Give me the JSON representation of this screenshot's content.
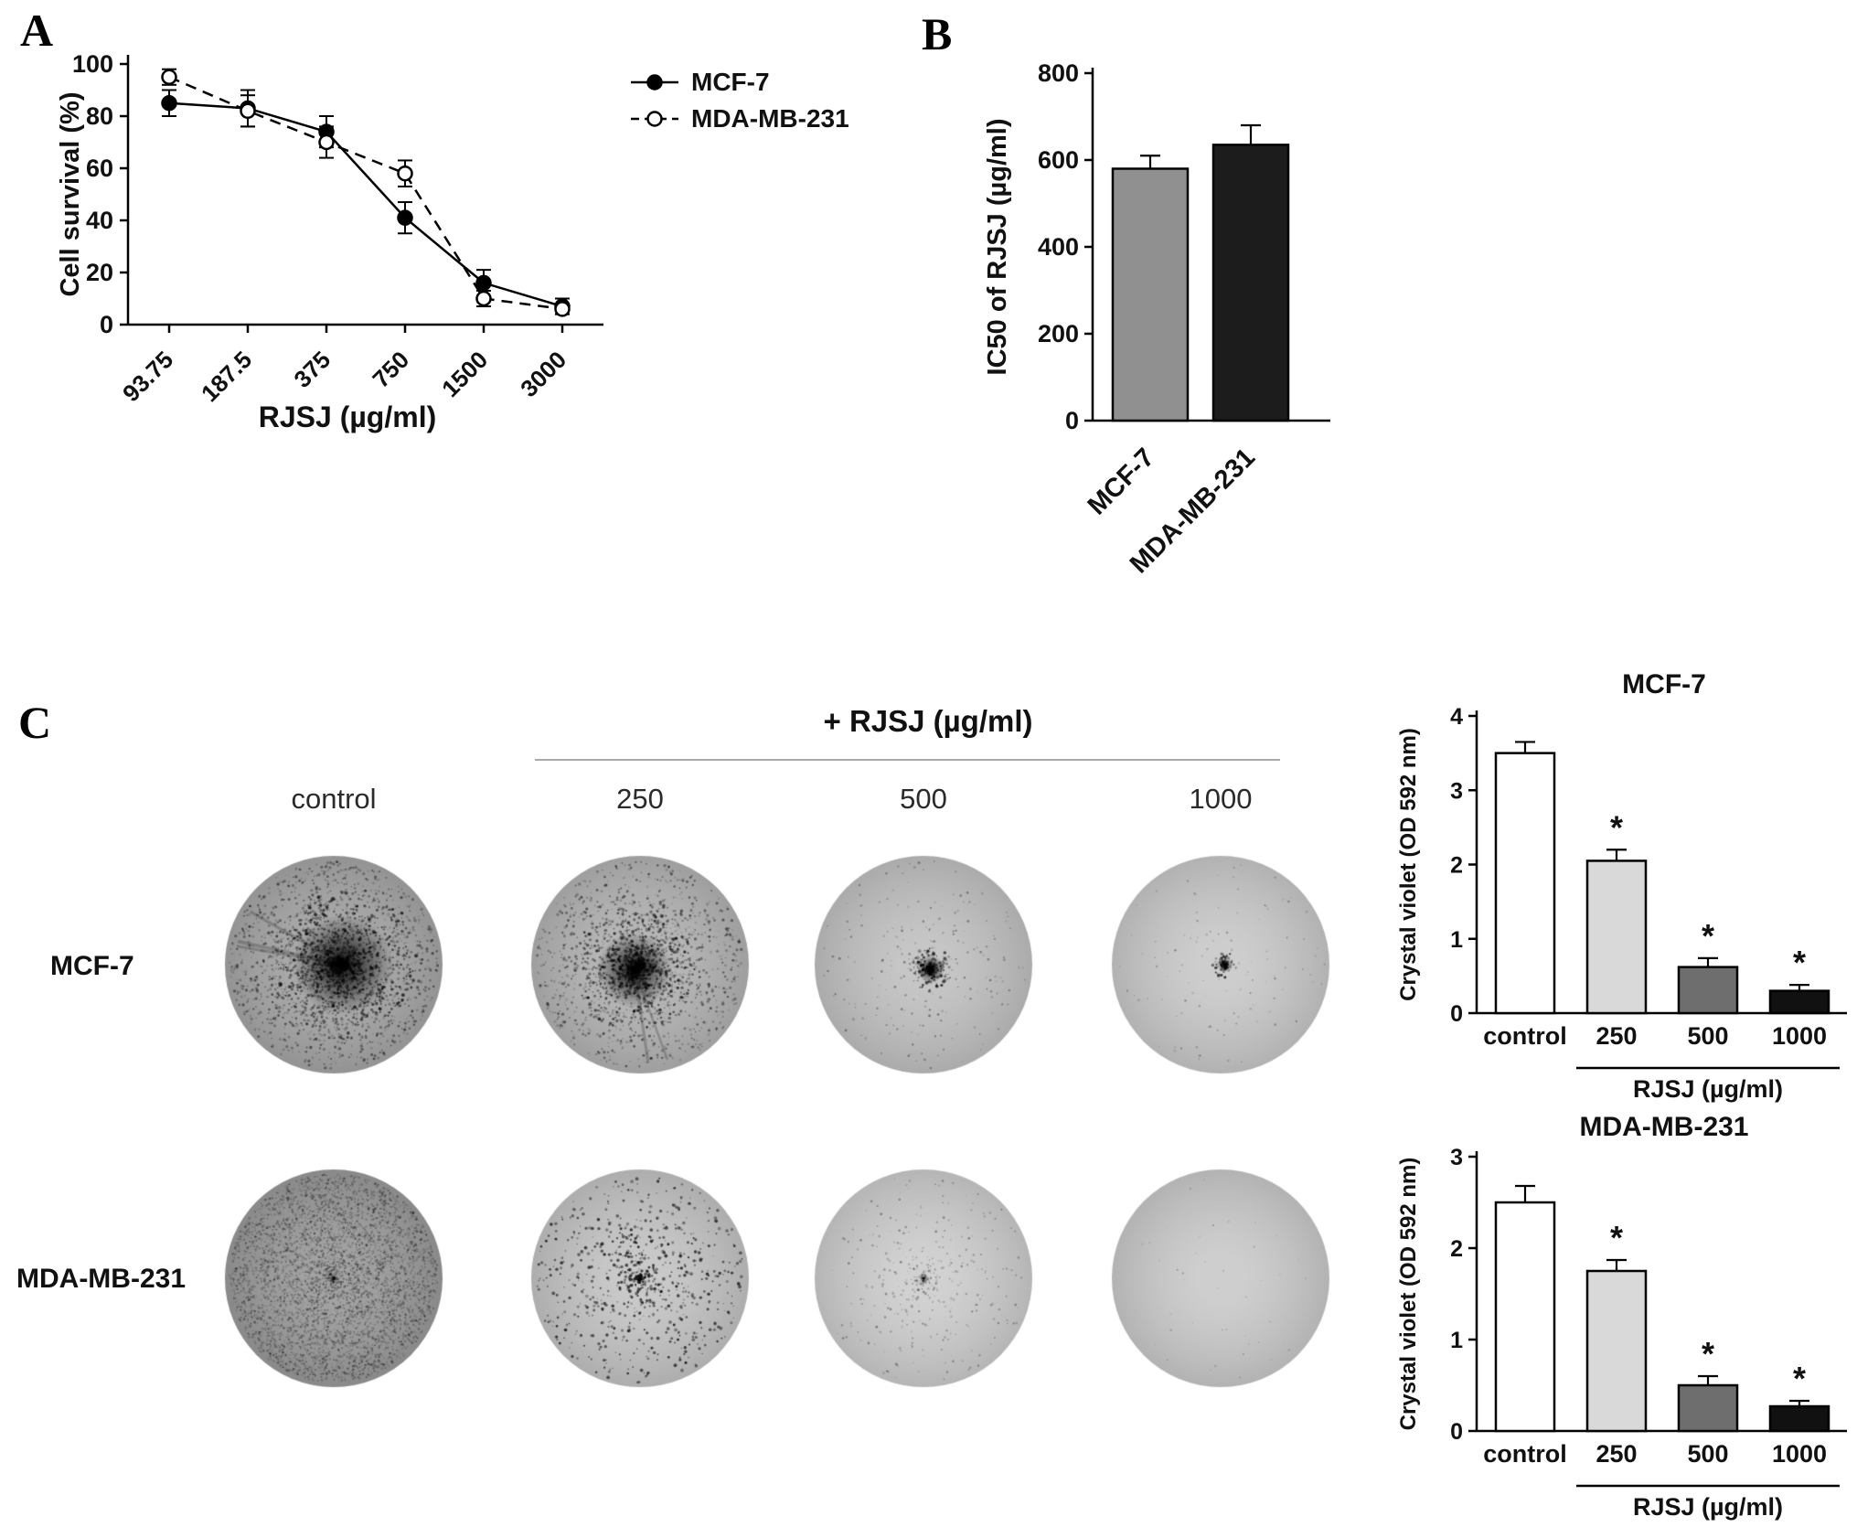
{
  "panels": {
    "a": "A",
    "b": "B",
    "c": "C"
  },
  "chart_data": [
    {
      "id": "survival",
      "type": "line",
      "title": "",
      "xlabel": "RJSJ (µg/ml)",
      "ylabel": "Cell survival (%)",
      "categories": [
        "93.75",
        "187.5",
        "375",
        "750",
        "1500",
        "3000"
      ],
      "ylim": [
        0,
        100
      ],
      "yticks": [
        0,
        20,
        40,
        60,
        80,
        100
      ],
      "legend_position": "top-right",
      "series": [
        {
          "name": "MCF-7",
          "style": "solid",
          "marker": "filled",
          "values": [
            85,
            83,
            74,
            41,
            16,
            7
          ],
          "errors": [
            5,
            7,
            6,
            6,
            5,
            3
          ]
        },
        {
          "name": "MDA-MB-231",
          "style": "dashed",
          "marker": "open",
          "values": [
            95,
            82,
            70,
            58,
            10,
            6
          ],
          "errors": [
            3,
            6,
            6,
            5,
            3,
            2
          ]
        }
      ]
    },
    {
      "id": "ic50",
      "type": "bar",
      "title": "",
      "ylabel": "IC50 of RJSJ (µg/ml)",
      "categories": [
        "MCF-7",
        "MDA-MB-231"
      ],
      "values": [
        580,
        635
      ],
      "errors": [
        30,
        45
      ],
      "stars": [
        false,
        false
      ],
      "colors": [
        "#909090",
        "#1c1c1c"
      ],
      "ylim": [
        0,
        800
      ],
      "yticks": [
        0,
        200,
        400,
        600,
        800
      ]
    },
    {
      "id": "cv_mcf7",
      "type": "bar",
      "title": "MCF-7",
      "ylabel": "Crystal violet (OD 592 nm)",
      "xlabel_group": "RJSJ (µg/ml)",
      "categories": [
        "control",
        "250",
        "500",
        "1000"
      ],
      "values": [
        3.5,
        2.05,
        0.62,
        0.3
      ],
      "errors": [
        0.15,
        0.15,
        0.12,
        0.08
      ],
      "stars": [
        false,
        true,
        true,
        true
      ],
      "colors": [
        "#ffffff",
        "#d9d9d9",
        "#6e6e6e",
        "#111111"
      ],
      "ylim": [
        0,
        4
      ],
      "yticks": [
        0,
        1,
        2,
        3,
        4
      ]
    },
    {
      "id": "cv_mda",
      "type": "bar",
      "title": "MDA-MB-231",
      "ylabel": "Crystal violet (OD 592 nm)",
      "xlabel_group": "RJSJ (µg/ml)",
      "categories": [
        "control",
        "250",
        "500",
        "1000"
      ],
      "values": [
        2.5,
        1.75,
        0.5,
        0.27
      ],
      "errors": [
        0.18,
        0.12,
        0.1,
        0.06
      ],
      "stars": [
        false,
        true,
        true,
        true
      ],
      "colors": [
        "#ffffff",
        "#d9d9d9",
        "#6e6e6e",
        "#111111"
      ],
      "ylim": [
        0,
        3
      ],
      "yticks": [
        0,
        1,
        2,
        3
      ]
    }
  ],
  "colony": {
    "header": "+ RJSJ (µg/ml)",
    "columns": [
      "control",
      "250",
      "500",
      "1000"
    ],
    "rows": [
      {
        "label": "MCF-7",
        "dishes": [
          {
            "base": "#a7a7a7",
            "dots": 2400,
            "dotSize": 1.1,
            "alphaMin": 0.12,
            "alphaVar": 0.45,
            "centerBias": 0.45,
            "blobR": 55,
            "blobA": 0.9,
            "blobDots": 800,
            "blobDx": 10,
            "blobDy": 0,
            "streaks": 3,
            "seed": 11
          },
          {
            "base": "#b4b4b4",
            "dots": 1900,
            "dotSize": 1.1,
            "alphaMin": 0.12,
            "alphaVar": 0.45,
            "centerBias": 0.5,
            "blobR": 42,
            "blobA": 0.85,
            "blobDots": 650,
            "blobDx": -6,
            "blobDy": 6,
            "streaks": 2,
            "seed": 22
          },
          {
            "base": "#c2c2c2",
            "dots": 260,
            "dotSize": 0.8,
            "alphaMin": 0.1,
            "alphaVar": 0.35,
            "centerBias": 0.35,
            "blobR": 15,
            "blobA": 0.95,
            "blobDots": 260,
            "blobDx": 8,
            "blobDy": 5,
            "streaks": 0,
            "seed": 33
          },
          {
            "base": "#cacaca",
            "dots": 130,
            "dotSize": 0.7,
            "alphaMin": 0.08,
            "alphaVar": 0.3,
            "centerBias": 0.3,
            "blobR": 9,
            "blobA": 0.6,
            "blobDots": 90,
            "blobDx": 5,
            "blobDy": 0,
            "streaks": 0,
            "seed": 44
          }
        ]
      },
      {
        "label": "MDA-MB-231",
        "dishes": [
          {
            "base": "#9c9c9c",
            "dots": 5200,
            "dotSize": 0.75,
            "alphaMin": 0.08,
            "alphaVar": 0.3,
            "centerBias": 0.1,
            "blobR": 0,
            "blobA": 0,
            "blobDots": 0,
            "blobDx": 0,
            "blobDy": 0,
            "streaks": 0,
            "seed": 55
          },
          {
            "base": "#c5c5c5",
            "dots": 850,
            "dotSize": 1.3,
            "alphaMin": 0.3,
            "alphaVar": 0.5,
            "centerBias": 0.4,
            "blobR": 0,
            "blobA": 0,
            "blobDots": 0,
            "blobDx": 0,
            "blobDy": 0,
            "streaks": 0,
            "seed": 66
          },
          {
            "base": "#cecece",
            "dots": 420,
            "dotSize": 0.8,
            "alphaMin": 0.1,
            "alphaVar": 0.3,
            "centerBias": 0.55,
            "blobR": 0,
            "blobA": 0,
            "blobDots": 0,
            "blobDx": 0,
            "blobDy": 0,
            "streaks": 0,
            "seed": 77
          },
          {
            "base": "#cbcbcb",
            "dots": 45,
            "dotSize": 0.6,
            "alphaMin": 0.06,
            "alphaVar": 0.2,
            "centerBias": 0.2,
            "blobR": 0,
            "blobA": 0,
            "blobDots": 0,
            "blobDx": 0,
            "blobDy": 0,
            "streaks": 0,
            "seed": 88
          }
        ]
      }
    ]
  }
}
